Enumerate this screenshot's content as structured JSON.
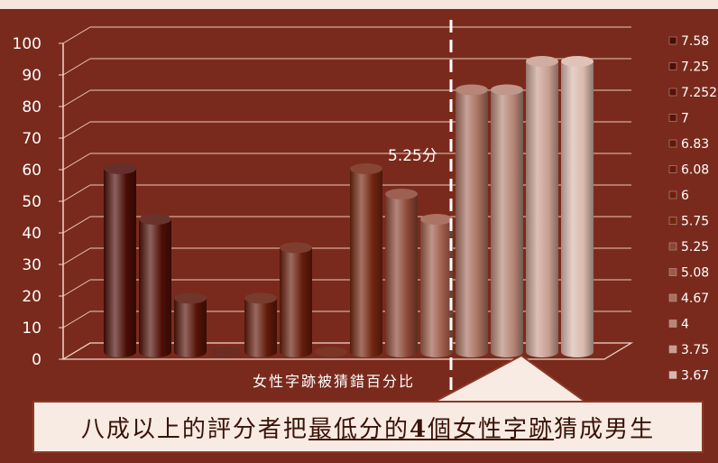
{
  "chart_data": {
    "type": "bar",
    "xlabel": "女性字跡被猜錯百分比",
    "ylim": [
      0,
      100
    ],
    "yticks": [
      0,
      10,
      20,
      30,
      40,
      50,
      60,
      70,
      80,
      90,
      100
    ],
    "grid": true,
    "legend_position": "right",
    "series": [
      {
        "name": "7.58",
        "value": 58,
        "color": "#4a0c05"
      },
      {
        "name": "7.25",
        "value": 42,
        "color": "#4f0f06"
      },
      {
        "name": "7.252",
        "value": 17,
        "color": "#551207"
      },
      {
        "name": "7",
        "value": 0,
        "color": "#5a1508"
      },
      {
        "name": "6.83",
        "value": 17,
        "color": "#601909"
      },
      {
        "name": "6.08",
        "value": 33,
        "color": "#661c0b"
      },
      {
        "name": "6",
        "value": 0,
        "color": "#6c200d"
      },
      {
        "name": "5.75",
        "value": 58,
        "color": "#72250f"
      },
      {
        "name": "5.25",
        "value": 50,
        "color": "#8a4534"
      },
      {
        "name": "5.08",
        "value": 42,
        "color": "#9c5a48"
      },
      {
        "name": "4.67",
        "value": 83,
        "color": "#a8705f"
      },
      {
        "name": "4",
        "value": 83,
        "color": "#b58676"
      },
      {
        "name": "3.75",
        "value": 92,
        "color": "#c89e90"
      },
      {
        "name": "3.67",
        "value": 92,
        "color": "#d9b8ac"
      }
    ],
    "annotations": [
      {
        "text": "5.25分"
      }
    ]
  },
  "callout": {
    "part1": "八成以上的評分者把",
    "part2": "最低分的",
    "part3": "4",
    "part4": "個女性字跡",
    "part5": "猜成男生"
  }
}
